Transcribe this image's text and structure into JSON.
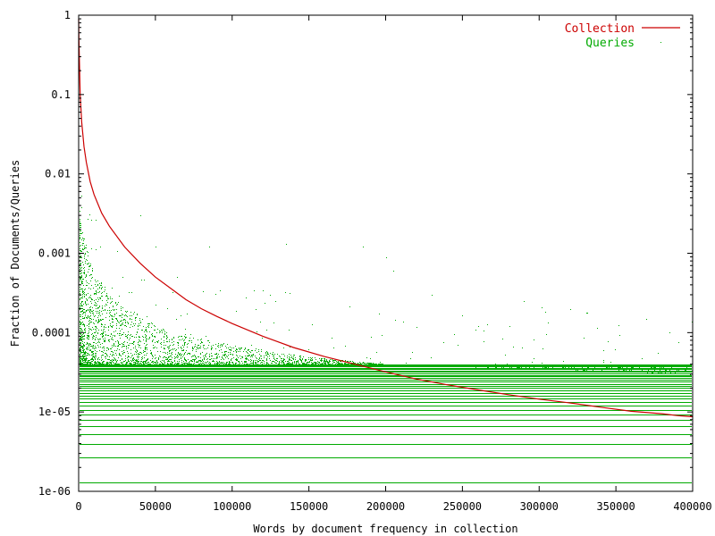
{
  "chart_data": {
    "type": "scatter",
    "title": "",
    "xlabel": "Words by document frequency in collection",
    "ylabel": "Fraction of Documents/Queries",
    "xlim": [
      0,
      400000
    ],
    "ylim": [
      1e-06,
      1
    ],
    "y_scale": "log",
    "grid": false,
    "legend_position": "top-right",
    "x_ticks": [
      0,
      50000,
      100000,
      150000,
      200000,
      250000,
      300000,
      350000,
      400000
    ],
    "x_tick_labels": [
      "0",
      "50000",
      "100000",
      "150000",
      "200000",
      "250000",
      "300000",
      "350000",
      "400000"
    ],
    "y_ticks": [
      1e-06,
      1e-05,
      0.0001,
      0.001,
      0.01,
      0.1,
      1
    ],
    "y_tick_labels": [
      "1e-06",
      "1e-05",
      "0.0001",
      "0.001",
      "0.01",
      "0.1",
      "1"
    ],
    "series": [
      {
        "name": "Collection",
        "style": "line",
        "color": "#cc0000",
        "points": [
          [
            0,
            0.9
          ],
          [
            200,
            0.5
          ],
          [
            500,
            0.25
          ],
          [
            1000,
            0.1
          ],
          [
            2000,
            0.045
          ],
          [
            3500,
            0.022
          ],
          [
            5000,
            0.014
          ],
          [
            7500,
            0.008
          ],
          [
            10000,
            0.0055
          ],
          [
            15000,
            0.0032
          ],
          [
            20000,
            0.0022
          ],
          [
            30000,
            0.0012
          ],
          [
            40000,
            0.00075
          ],
          [
            50000,
            0.0005
          ],
          [
            60000,
            0.00036
          ],
          [
            70000,
            0.00026
          ],
          [
            80000,
            0.0002
          ],
          [
            90000,
            0.00016
          ],
          [
            100000,
            0.00013
          ],
          [
            120000,
            9e-05
          ],
          [
            140000,
            6.5e-05
          ],
          [
            160000,
            5e-05
          ],
          [
            180000,
            4e-05
          ],
          [
            200000,
            3.2e-05
          ],
          [
            220000,
            2.6e-05
          ],
          [
            240000,
            2.2e-05
          ],
          [
            260000,
            1.9e-05
          ],
          [
            280000,
            1.65e-05
          ],
          [
            300000,
            1.45e-05
          ],
          [
            320000,
            1.3e-05
          ],
          [
            340000,
            1.15e-05
          ],
          [
            360000,
            1.02e-05
          ],
          [
            380000,
            9.5e-06
          ],
          [
            390000,
            9e-06
          ],
          [
            400000,
            8.7e-06
          ]
        ]
      },
      {
        "name": "Queries",
        "style": "points",
        "color": "#00aa00",
        "horizontal_bands": [
          1.3e-06,
          2.7e-06,
          4e-06,
          5.3e-06,
          6.7e-06,
          8e-06,
          9.3e-06,
          1.07e-05,
          1.2e-05,
          1.33e-05,
          1.47e-05,
          1.6e-05,
          1.73e-05,
          1.87e-05,
          2e-05,
          2.13e-05,
          2.27e-05,
          2.4e-05,
          2.53e-05,
          2.67e-05,
          2.8e-05,
          2.93e-05,
          3.07e-05,
          3.2e-05,
          3.33e-05,
          3.47e-05,
          3.6e-05,
          3.73e-05,
          3.87e-05,
          4e-05
        ],
        "density_envelope": [
          [
            0,
            0.003
          ],
          [
            5000,
            0.0012
          ],
          [
            10000,
            0.0006
          ],
          [
            20000,
            0.0003
          ],
          [
            40000,
            0.00016
          ],
          [
            60000,
            0.0001
          ],
          [
            100000,
            7e-05
          ],
          [
            150000,
            5e-05
          ],
          [
            200000,
            4e-05
          ],
          [
            300000,
            3.5e-05
          ],
          [
            400000,
            3e-05
          ]
        ],
        "sample_points": [
          [
            40000,
            0.003
          ],
          [
            50000,
            0.0012
          ],
          [
            85000,
            0.0012
          ],
          [
            135000,
            0.0013
          ],
          [
            185000,
            0.0012
          ],
          [
            200000,
            0.0009
          ],
          [
            205000,
            0.0006
          ],
          [
            290000,
            0.00025
          ],
          [
            320000,
            0.0002
          ],
          [
            370000,
            0.00015
          ],
          [
            385000,
            0.0001
          ],
          [
            230000,
            0.0003
          ],
          [
            260000,
            0.00012
          ]
        ]
      }
    ]
  }
}
